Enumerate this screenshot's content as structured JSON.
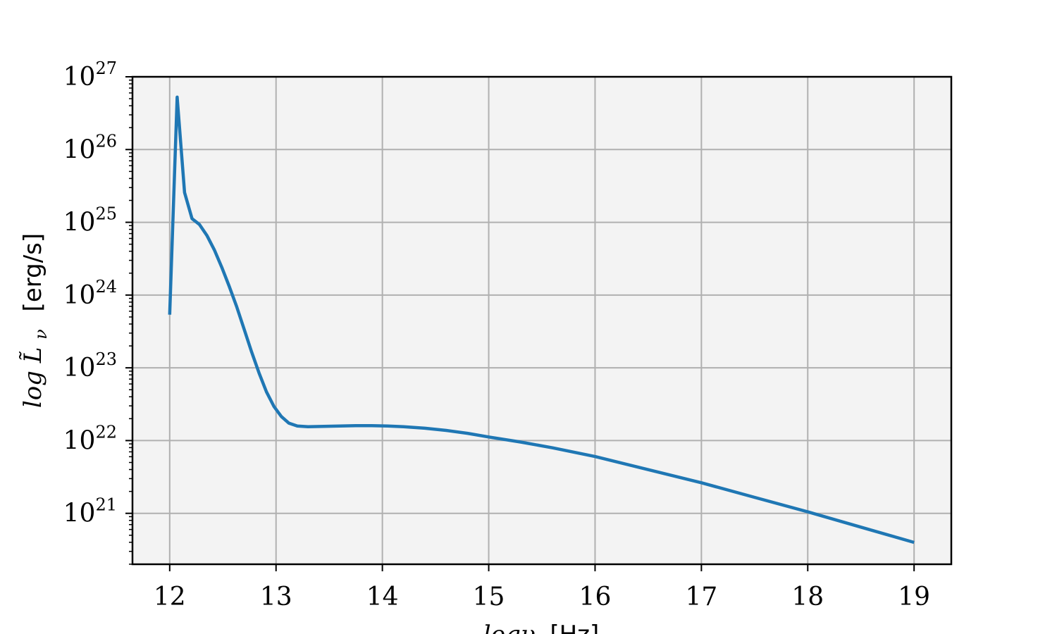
{
  "chart_data": {
    "type": "line",
    "title": "",
    "xlabel": {
      "math": "logν",
      "unit": "[Hz]"
    },
    "ylabel": {
      "math": "log L̃",
      "subscript": "ν",
      "unit": "[erg/s]"
    },
    "x_scale": "linear",
    "y_scale": "log",
    "xlim": [
      11.65,
      19.35
    ],
    "ylim_log10": [
      20.3,
      27.0
    ],
    "x_ticks": [
      12,
      13,
      14,
      15,
      16,
      17,
      18,
      19
    ],
    "x_tick_labels": [
      "12",
      "13",
      "14",
      "15",
      "16",
      "17",
      "18",
      "19"
    ],
    "y_ticks_log10": [
      21,
      22,
      23,
      24,
      25,
      26,
      27
    ],
    "y_tick_base": "10",
    "y_tick_exponents": [
      "21",
      "22",
      "23",
      "24",
      "25",
      "26",
      "27"
    ],
    "grid": true,
    "background": "#f3f3f3",
    "grid_color": "#b0b0b0",
    "series": [
      {
        "color": "#1f77b4",
        "x": [
          12.0,
          12.07,
          12.14,
          12.21,
          12.28,
          12.35,
          12.42,
          12.49,
          12.56,
          12.63,
          12.7,
          12.77,
          12.84,
          12.91,
          12.98,
          13.05,
          13.12,
          13.2,
          13.3,
          13.45,
          13.6,
          13.75,
          13.9,
          14.05,
          14.2,
          14.4,
          14.6,
          14.8,
          15.0,
          15.3,
          15.6,
          16.0,
          16.5,
          17.0,
          17.5,
          18.0,
          18.5,
          19.0
        ],
        "y_log10": [
          23.73,
          26.72,
          25.41,
          25.05,
          24.97,
          24.82,
          24.62,
          24.38,
          24.12,
          23.84,
          23.53,
          23.22,
          22.93,
          22.67,
          22.47,
          22.33,
          22.24,
          22.2,
          22.19,
          22.195,
          22.2,
          22.205,
          22.205,
          22.2,
          22.19,
          22.17,
          22.14,
          22.1,
          22.05,
          21.98,
          21.9,
          21.78,
          21.6,
          21.42,
          21.22,
          21.02,
          20.81,
          20.6
        ]
      }
    ]
  }
}
